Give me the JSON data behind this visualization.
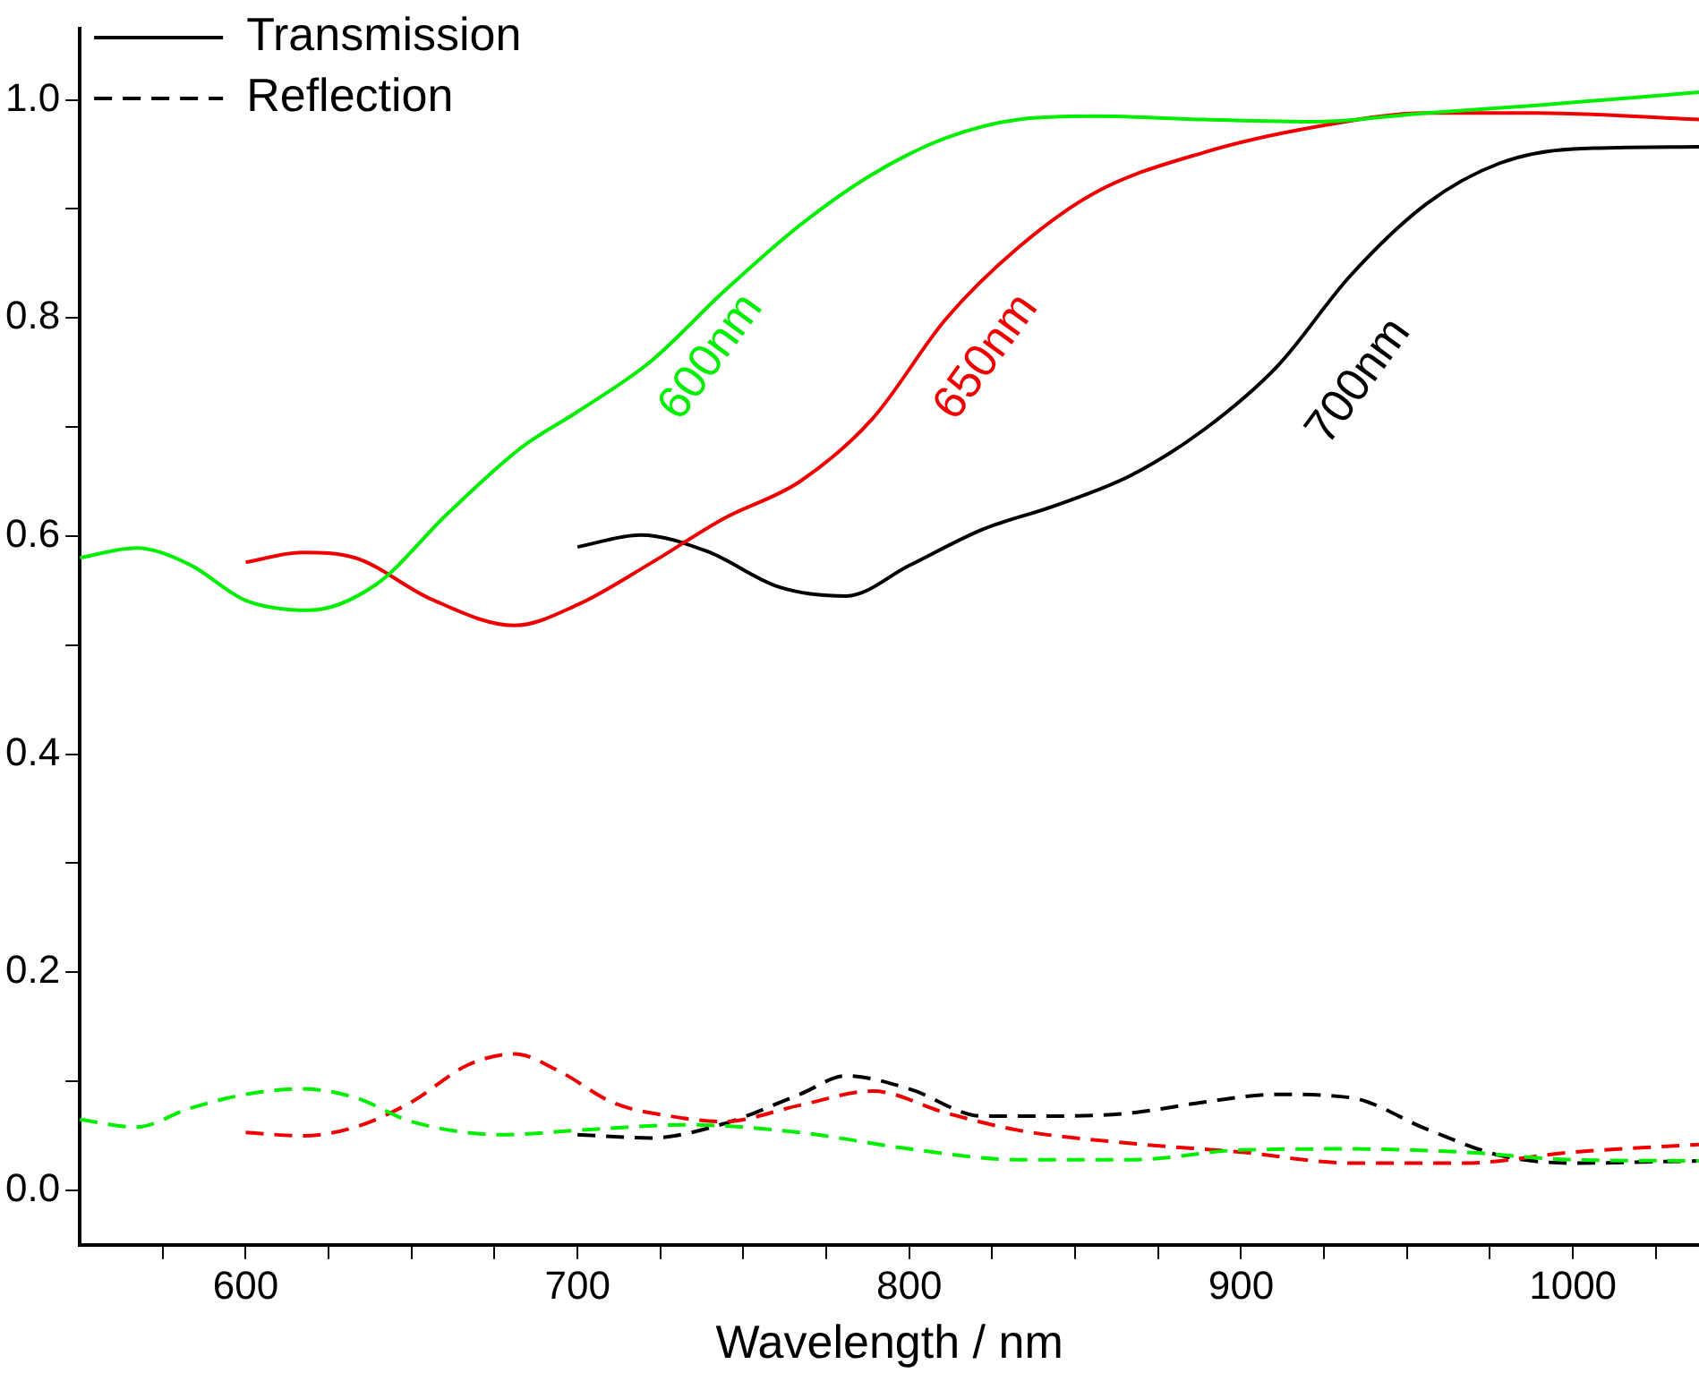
{
  "chart_data": {
    "type": "line",
    "xlabel": "Wavelength / nm",
    "xlim": [
      550,
      1038
    ],
    "ylim": [
      -0.05,
      1.065
    ],
    "xticks": [
      {
        "value": 575,
        "label": null
      },
      600,
      {
        "value": 625,
        "label": null
      },
      {
        "value": 650,
        "label": null
      },
      {
        "value": 675,
        "label": null
      },
      700,
      {
        "value": 725,
        "label": null
      },
      {
        "value": 750,
        "label": null
      },
      {
        "value": 775,
        "label": null
      },
      800,
      {
        "value": 825,
        "label": null
      },
      {
        "value": 850,
        "label": null
      },
      {
        "value": 875,
        "label": null
      },
      900,
      {
        "value": 925,
        "label": null
      },
      {
        "value": 950,
        "label": null
      },
      {
        "value": 975,
        "label": null
      },
      1000,
      {
        "value": 1025,
        "label": null
      }
    ],
    "yticks": [
      {
        "value": 0,
        "label": "0.0"
      },
      {
        "value": 0.1,
        "label": null
      },
      {
        "value": 0.2,
        "label": "0.2"
      },
      {
        "value": 0.3,
        "label": null
      },
      {
        "value": 0.4,
        "label": "0.4"
      },
      {
        "value": 0.5,
        "label": null
      },
      {
        "value": 0.6,
        "label": "0.6"
      },
      {
        "value": 0.7,
        "label": null
      },
      {
        "value": 0.8,
        "label": "0.8"
      },
      {
        "value": 0.9,
        "label": null
      },
      {
        "value": 1.0,
        "label": "1.0"
      }
    ],
    "grid": false,
    "legend": "top left",
    "marker": "none",
    "series": [
      {
        "color": "#00ee00",
        "line_style": "solid",
        "x": [
          550,
          567,
          583,
          600,
          619,
          639,
          661,
          683,
          700,
          722,
          744,
          767,
          789,
          811,
          833,
          856,
          889,
          922,
          956,
          989,
          1038
        ],
        "values": [
          0.58,
          0.589,
          0.574,
          0.541,
          0.532,
          0.555,
          0.621,
          0.681,
          0.714,
          0.76,
          0.824,
          0.885,
          0.932,
          0.965,
          0.982,
          0.985,
          0.982,
          0.98,
          0.988,
          0.995,
          1.007
        ]
      },
      {
        "color": "#ee0000",
        "line_style": "solid",
        "x": [
          600,
          617,
          633,
          656,
          681,
          700,
          722,
          744,
          767,
          789,
          811,
          833,
          856,
          889,
          922,
          956,
          989,
          1038
        ],
        "values": [
          0.576,
          0.585,
          0.58,
          0.542,
          0.518,
          0.537,
          0.575,
          0.616,
          0.65,
          0.708,
          0.799,
          0.865,
          0.915,
          0.952,
          0.975,
          0.988,
          0.988,
          0.982
        ]
      },
      {
        "name": "Transmission",
        "color": "#000000",
        "line_style": "solid",
        "x": [
          700,
          719,
          739,
          761,
          781,
          800,
          822,
          844,
          867,
          889,
          911,
          933,
          956,
          978,
          1000,
          1038
        ],
        "values": [
          0.59,
          0.601,
          0.586,
          0.553,
          0.545,
          0.573,
          0.606,
          0.628,
          0.656,
          0.698,
          0.756,
          0.839,
          0.905,
          0.942,
          0.955,
          0.957
        ]
      },
      {
        "color": "#00ee00",
        "line_style": "dashed",
        "x": [
          550,
          567,
          583,
          600,
          617,
          633,
          650,
          678,
          700,
          733,
          767,
          800,
          833,
          867,
          900,
          933,
          967,
          1000,
          1038
        ],
        "values": [
          0.065,
          0.058,
          0.075,
          0.088,
          0.093,
          0.085,
          0.063,
          0.051,
          0.055,
          0.06,
          0.053,
          0.038,
          0.028,
          0.028,
          0.037,
          0.038,
          0.035,
          0.028,
          0.027
        ]
      },
      {
        "color": "#ee0000",
        "line_style": "dashed",
        "x": [
          600,
          617,
          633,
          650,
          667,
          681,
          694,
          711,
          728,
          744,
          767,
          789,
          811,
          833,
          867,
          900,
          933,
          967,
          1000,
          1038
        ],
        "values": [
          0.053,
          0.05,
          0.058,
          0.081,
          0.115,
          0.125,
          0.11,
          0.08,
          0.068,
          0.063,
          0.078,
          0.091,
          0.071,
          0.055,
          0.043,
          0.035,
          0.025,
          0.025,
          0.035,
          0.042
        ]
      },
      {
        "name": "Reflection",
        "color": "#000000",
        "line_style": "dashed",
        "x": [
          700,
          722,
          744,
          767,
          781,
          800,
          822,
          844,
          867,
          889,
          911,
          933,
          956,
          978,
          1000,
          1038
        ],
        "values": [
          0.051,
          0.048,
          0.061,
          0.088,
          0.105,
          0.093,
          0.068,
          0.068,
          0.071,
          0.081,
          0.088,
          0.085,
          0.056,
          0.032,
          0.025,
          0.027
        ]
      }
    ],
    "annotations": [
      "600nm",
      "650nm",
      "700nm"
    ]
  }
}
